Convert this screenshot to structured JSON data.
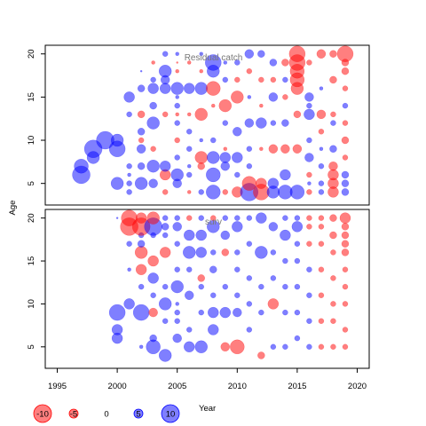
{
  "chart_data": [
    {
      "type": "scatter",
      "panel": "top",
      "title": "Residual catch",
      "ylabel": "Age",
      "xlim": [
        1994,
        2021
      ],
      "ylim": [
        2.5,
        21
      ],
      "yticks": [
        5,
        10,
        15,
        20
      ],
      "points": [
        [
          1997,
          6,
          10
        ],
        [
          1997,
          7,
          8
        ],
        [
          1998,
          8,
          7
        ],
        [
          1998,
          9,
          10
        ],
        [
          1999,
          10,
          10
        ],
        [
          2000,
          9,
          9
        ],
        [
          2000,
          10,
          7
        ],
        [
          2000,
          5,
          7
        ],
        [
          2001,
          4,
          3
        ],
        [
          2001,
          5,
          3
        ],
        [
          2001,
          6,
          2
        ],
        [
          2001,
          7,
          3
        ],
        [
          2001,
          13,
          3
        ],
        [
          2001,
          15,
          6
        ],
        [
          2002,
          5,
          7
        ],
        [
          2002,
          7,
          4
        ],
        [
          2002,
          9,
          5
        ],
        [
          2002,
          10,
          -3
        ],
        [
          2002,
          11,
          4
        ],
        [
          2002,
          13,
          -4
        ],
        [
          2002,
          16,
          4
        ],
        [
          2002,
          18,
          1
        ],
        [
          2003,
          5,
          5
        ],
        [
          2003,
          7,
          7
        ],
        [
          2003,
          9,
          -3
        ],
        [
          2003,
          12,
          7
        ],
        [
          2003,
          14,
          4
        ],
        [
          2003,
          16,
          6
        ],
        [
          2003,
          17,
          3
        ],
        [
          2003,
          19,
          -2
        ],
        [
          2004,
          4,
          -3
        ],
        [
          2004,
          6,
          -6
        ],
        [
          2004,
          7,
          6
        ],
        [
          2004,
          13,
          -3
        ],
        [
          2004,
          16,
          6
        ],
        [
          2004,
          17,
          5
        ],
        [
          2004,
          18,
          7
        ],
        [
          2004,
          20,
          3
        ],
        [
          2005,
          5,
          5
        ],
        [
          2005,
          6,
          7
        ],
        [
          2005,
          8,
          3
        ],
        [
          2005,
          10,
          -3
        ],
        [
          2005,
          12,
          3
        ],
        [
          2005,
          13,
          -2
        ],
        [
          2005,
          14,
          3
        ],
        [
          2005,
          15,
          2
        ],
        [
          2005,
          16,
          7
        ],
        [
          2005,
          18,
          -2
        ],
        [
          2005,
          19,
          -1
        ],
        [
          2005,
          20,
          2
        ],
        [
          2006,
          4,
          -2
        ],
        [
          2006,
          6,
          3
        ],
        [
          2006,
          7,
          2
        ],
        [
          2006,
          9,
          3
        ],
        [
          2006,
          11,
          3
        ],
        [
          2006,
          13,
          -2
        ],
        [
          2006,
          16,
          6
        ],
        [
          2006,
          19,
          -2
        ],
        [
          2007,
          4,
          3
        ],
        [
          2007,
          7,
          -4
        ],
        [
          2007,
          8,
          -7
        ],
        [
          2007,
          10,
          2
        ],
        [
          2007,
          13,
          -7
        ],
        [
          2007,
          16,
          7
        ],
        [
          2007,
          18,
          -2
        ],
        [
          2007,
          20,
          2
        ],
        [
          2008,
          4,
          8
        ],
        [
          2008,
          6,
          8
        ],
        [
          2008,
          8,
          7
        ],
        [
          2008,
          10,
          3
        ],
        [
          2008,
          14,
          -2
        ],
        [
          2008,
          16,
          -8
        ],
        [
          2008,
          18,
          7
        ],
        [
          2008,
          19,
          9
        ],
        [
          2009,
          4,
          -3
        ],
        [
          2009,
          7,
          5
        ],
        [
          2009,
          8,
          6
        ],
        [
          2009,
          9,
          -2
        ],
        [
          2009,
          12,
          3
        ],
        [
          2009,
          14,
          -7
        ],
        [
          2009,
          17,
          3
        ],
        [
          2009,
          19,
          2
        ],
        [
          2010,
          4,
          -6
        ],
        [
          2010,
          6,
          3
        ],
        [
          2010,
          8,
          6
        ],
        [
          2010,
          11,
          5
        ],
        [
          2010,
          15,
          -7
        ],
        [
          2010,
          17,
          -3
        ],
        [
          2010,
          19,
          3
        ],
        [
          2011,
          4,
          10
        ],
        [
          2011,
          5,
          -8
        ],
        [
          2011,
          7,
          3
        ],
        [
          2011,
          9,
          3
        ],
        [
          2011,
          12,
          5
        ],
        [
          2011,
          15,
          2
        ],
        [
          2011,
          18,
          -3
        ],
        [
          2011,
          20,
          5
        ],
        [
          2012,
          4,
          -9
        ],
        [
          2012,
          5,
          -6
        ],
        [
          2012,
          9,
          -2
        ],
        [
          2012,
          12,
          6
        ],
        [
          2012,
          14,
          -2
        ],
        [
          2012,
          17,
          -3
        ],
        [
          2012,
          20,
          4
        ],
        [
          2013,
          4,
          7
        ],
        [
          2013,
          5,
          6
        ],
        [
          2013,
          9,
          -5
        ],
        [
          2013,
          12,
          3
        ],
        [
          2013,
          15,
          5
        ],
        [
          2013,
          17,
          -3
        ],
        [
          2013,
          19,
          4
        ],
        [
          2014,
          4,
          8
        ],
        [
          2014,
          6,
          6
        ],
        [
          2014,
          9,
          -5
        ],
        [
          2014,
          12,
          4
        ],
        [
          2014,
          15,
          -3
        ],
        [
          2014,
          17,
          3
        ],
        [
          2014,
          19,
          -4
        ],
        [
          2015,
          4,
          8
        ],
        [
          2015,
          9,
          -5
        ],
        [
          2015,
          13,
          -4
        ],
        [
          2015,
          16,
          -7
        ],
        [
          2015,
          17,
          -8
        ],
        [
          2015,
          18,
          -8
        ],
        [
          2015,
          19,
          -9
        ],
        [
          2015,
          20,
          -9
        ],
        [
          2016,
          4,
          -3
        ],
        [
          2016,
          5,
          2
        ],
        [
          2016,
          6,
          -3
        ],
        [
          2016,
          8,
          5
        ],
        [
          2016,
          10,
          3
        ],
        [
          2016,
          13,
          6
        ],
        [
          2016,
          14,
          3
        ],
        [
          2016,
          15,
          5
        ],
        [
          2016,
          19,
          -3
        ],
        [
          2017,
          4,
          3
        ],
        [
          2017,
          5,
          3
        ],
        [
          2017,
          7,
          3
        ],
        [
          2017,
          9,
          2
        ],
        [
          2017,
          11,
          -3
        ],
        [
          2017,
          13,
          -5
        ],
        [
          2017,
          16,
          2
        ],
        [
          2017,
          20,
          -5
        ],
        [
          2018,
          4,
          -6
        ],
        [
          2018,
          5,
          -6
        ],
        [
          2018,
          6,
          -6
        ],
        [
          2018,
          7,
          -5
        ],
        [
          2018,
          9,
          4
        ],
        [
          2018,
          12,
          3
        ],
        [
          2018,
          13,
          -3
        ],
        [
          2018,
          17,
          -4
        ],
        [
          2018,
          20,
          -4
        ],
        [
          2019,
          4,
          4
        ],
        [
          2019,
          5,
          4
        ],
        [
          2019,
          6,
          4
        ],
        [
          2019,
          8,
          -3
        ],
        [
          2019,
          10,
          -4
        ],
        [
          2019,
          12,
          -3
        ],
        [
          2019,
          14,
          3
        ],
        [
          2019,
          16,
          -3
        ],
        [
          2019,
          18,
          -4
        ],
        [
          2019,
          19,
          -4
        ],
        [
          2019,
          20,
          -9
        ]
      ]
    },
    {
      "type": "scatter",
      "panel": "bottom",
      "title": "surv",
      "ylabel": "Age",
      "xlabel": "Year",
      "xlim": [
        1994,
        2021
      ],
      "ylim": [
        2.5,
        21
      ],
      "yticks": [
        5,
        10,
        15,
        20
      ],
      "xticks": [
        1995,
        2000,
        2005,
        2010,
        2015,
        2020
      ],
      "points": [
        [
          2000,
          6,
          6
        ],
        [
          2000,
          7,
          6
        ],
        [
          2000,
          9,
          9
        ],
        [
          2000,
          20,
          1
        ],
        [
          2001,
          10,
          6
        ],
        [
          2001,
          19,
          -10
        ],
        [
          2001,
          20,
          -9
        ],
        [
          2001,
          17,
          3
        ],
        [
          2001,
          14,
          2
        ],
        [
          2002,
          5,
          2
        ],
        [
          2002,
          9,
          9
        ],
        [
          2002,
          14,
          -6
        ],
        [
          2002,
          16,
          -7
        ],
        [
          2002,
          17,
          4
        ],
        [
          2002,
          18,
          3
        ],
        [
          2002,
          19,
          -10
        ],
        [
          2002,
          20,
          -6
        ],
        [
          2002,
          12,
          3
        ],
        [
          2003,
          5,
          8
        ],
        [
          2003,
          6,
          4
        ],
        [
          2003,
          9,
          -5
        ],
        [
          2003,
          13,
          6
        ],
        [
          2003,
          15,
          -6
        ],
        [
          2003,
          19,
          10
        ],
        [
          2003,
          20,
          -7
        ],
        [
          2003,
          18,
          3
        ],
        [
          2003,
          11,
          3
        ],
        [
          2004,
          4,
          7
        ],
        [
          2004,
          10,
          7
        ],
        [
          2004,
          12,
          3
        ],
        [
          2004,
          16,
          -6
        ],
        [
          2004,
          18,
          3
        ],
        [
          2004,
          19,
          4
        ],
        [
          2004,
          20,
          3
        ],
        [
          2004,
          8,
          3
        ],
        [
          2005,
          6,
          5
        ],
        [
          2005,
          8,
          3
        ],
        [
          2005,
          9,
          3
        ],
        [
          2005,
          10,
          2
        ],
        [
          2005,
          12,
          7
        ],
        [
          2005,
          14,
          3
        ],
        [
          2005,
          17,
          3
        ],
        [
          2005,
          19,
          5
        ],
        [
          2005,
          20,
          3
        ],
        [
          2006,
          5,
          6
        ],
        [
          2006,
          7,
          3
        ],
        [
          2006,
          11,
          5
        ],
        [
          2006,
          14,
          3
        ],
        [
          2006,
          16,
          7
        ],
        [
          2006,
          18,
          6
        ],
        [
          2006,
          20,
          -3
        ],
        [
          2007,
          5,
          7
        ],
        [
          2007,
          9,
          3
        ],
        [
          2007,
          12,
          3
        ],
        [
          2007,
          13,
          -4
        ],
        [
          2007,
          16,
          6
        ],
        [
          2007,
          18,
          6
        ],
        [
          2007,
          20,
          3
        ],
        [
          2008,
          7,
          6
        ],
        [
          2008,
          9,
          6
        ],
        [
          2008,
          11,
          3
        ],
        [
          2008,
          14,
          4
        ],
        [
          2008,
          16,
          3
        ],
        [
          2008,
          19,
          7
        ],
        [
          2008,
          20,
          -3
        ],
        [
          2009,
          5,
          -5
        ],
        [
          2009,
          9,
          6
        ],
        [
          2009,
          12,
          3
        ],
        [
          2009,
          16,
          -4
        ],
        [
          2009,
          18,
          5
        ],
        [
          2009,
          20,
          3
        ],
        [
          2010,
          5,
          -8
        ],
        [
          2010,
          9,
          5
        ],
        [
          2010,
          11,
          3
        ],
        [
          2010,
          14,
          3
        ],
        [
          2010,
          16,
          3
        ],
        [
          2010,
          19,
          6
        ],
        [
          2010,
          20,
          3
        ],
        [
          2011,
          7,
          3
        ],
        [
          2011,
          10,
          3
        ],
        [
          2011,
          13,
          3
        ],
        [
          2011,
          17,
          3
        ],
        [
          2011,
          20,
          3
        ],
        [
          2012,
          4,
          -4
        ],
        [
          2012,
          9,
          3
        ],
        [
          2012,
          12,
          3
        ],
        [
          2012,
          16,
          7
        ],
        [
          2012,
          20,
          6
        ],
        [
          2013,
          5,
          3
        ],
        [
          2013,
          10,
          -6
        ],
        [
          2013,
          13,
          3
        ],
        [
          2013,
          16,
          3
        ],
        [
          2013,
          19,
          5
        ],
        [
          2014,
          5,
          3
        ],
        [
          2014,
          9,
          3
        ],
        [
          2014,
          12,
          3
        ],
        [
          2014,
          15,
          3
        ],
        [
          2014,
          18,
          6
        ],
        [
          2014,
          20,
          3
        ],
        [
          2015,
          6,
          3
        ],
        [
          2015,
          9,
          3
        ],
        [
          2015,
          12,
          3
        ],
        [
          2015,
          15,
          3
        ],
        [
          2015,
          17,
          3
        ],
        [
          2015,
          19,
          6
        ],
        [
          2015,
          20,
          3
        ],
        [
          2016,
          5,
          3
        ],
        [
          2016,
          8,
          3
        ],
        [
          2016,
          11,
          3
        ],
        [
          2016,
          14,
          3
        ],
        [
          2016,
          17,
          -3
        ],
        [
          2016,
          19,
          -3
        ],
        [
          2016,
          20,
          -3
        ],
        [
          2017,
          5,
          -3
        ],
        [
          2017,
          8,
          -3
        ],
        [
          2017,
          11,
          -3
        ],
        [
          2017,
          14,
          -3
        ],
        [
          2017,
          17,
          -3
        ],
        [
          2017,
          19,
          -3
        ],
        [
          2017,
          20,
          -3
        ],
        [
          2018,
          5,
          -3
        ],
        [
          2018,
          8,
          -3
        ],
        [
          2018,
          10,
          -3
        ],
        [
          2018,
          13,
          -3
        ],
        [
          2018,
          16,
          -3
        ],
        [
          2018,
          18,
          -4
        ],
        [
          2018,
          20,
          -4
        ],
        [
          2019,
          5,
          -3
        ],
        [
          2019,
          7,
          -3
        ],
        [
          2019,
          10,
          -3
        ],
        [
          2019,
          12,
          -3
        ],
        [
          2019,
          14,
          -3
        ],
        [
          2019,
          16,
          -4
        ],
        [
          2019,
          17,
          -4
        ],
        [
          2019,
          18,
          -4
        ],
        [
          2019,
          19,
          -4
        ],
        [
          2019,
          20,
          -6
        ]
      ]
    }
  ],
  "legend": {
    "entries": [
      "-10",
      "-5",
      "0",
      "5",
      "10"
    ],
    "values": [
      -10,
      -5,
      0,
      5,
      10
    ]
  },
  "colors": {
    "positive": "#0000ff",
    "negative": "#ff0000"
  }
}
